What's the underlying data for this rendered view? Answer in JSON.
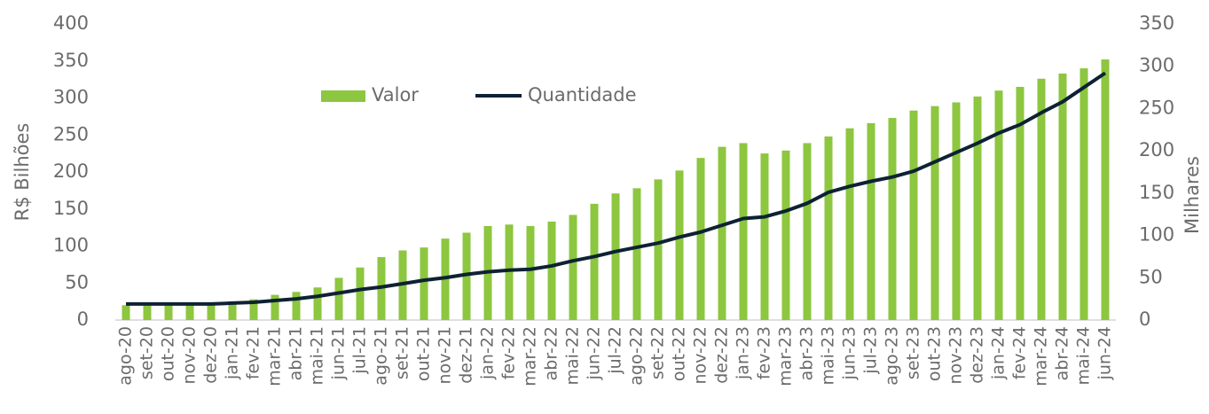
{
  "chart_data": {
    "type": "bar_line",
    "y_label": "R$ Bilhões",
    "y2_label": "Milhares",
    "categories": [
      "ago-20",
      "set-20",
      "out-20",
      "nov-20",
      "dez-20",
      "jan-21",
      "fev-21",
      "mar-21",
      "abr-21",
      "mai-21",
      "jun-21",
      "jul-21",
      "ago-21",
      "set-21",
      "out-21",
      "nov-21",
      "dez-21",
      "jan-22",
      "fev-22",
      "mar-22",
      "abr-22",
      "mai-22",
      "jun-22",
      "jul-22",
      "ago-22",
      "set-22",
      "out-22",
      "nov-22",
      "dez-22",
      "jan-23",
      "fev-23",
      "mar-23",
      "abr-23",
      "mai-23",
      "jun-23",
      "jul-23",
      "ago-23",
      "set-23",
      "out-23",
      "nov-23",
      "dez-23",
      "jan-24",
      "fev-24",
      "mar-24",
      "abr-24",
      "mai-24",
      "jun-24"
    ],
    "series": [
      {
        "name": "Valor",
        "type": "bar",
        "color": "#8dc63f",
        "values": [
          20,
          20,
          20,
          20,
          20,
          22,
          28,
          34,
          38,
          44,
          57,
          71,
          85,
          94,
          98,
          110,
          118,
          127,
          129,
          127,
          133,
          142,
          157,
          171,
          178,
          190,
          202,
          219,
          234,
          239,
          225,
          229,
          239,
          248,
          259,
          266,
          273,
          283,
          289,
          294,
          302,
          310,
          315,
          326,
          333,
          340,
          352
        ]
      },
      {
        "name": "Quantidade",
        "type": "line",
        "axis": "y2",
        "color": "#0d2233",
        "values": [
          19,
          19,
          19,
          19,
          19,
          20,
          21,
          23,
          25,
          28,
          32,
          36,
          39,
          43,
          47,
          50,
          54,
          57,
          59,
          60,
          64,
          70,
          75,
          81,
          86,
          91,
          98,
          104,
          112,
          120,
          122,
          129,
          138,
          151,
          158,
          164,
          169,
          176,
          187,
          198,
          209,
          221,
          231,
          245,
          258,
          275,
          292
        ]
      }
    ],
    "ylim": [
      0,
      400
    ],
    "yticks": [
      0,
      50,
      100,
      150,
      200,
      250,
      300,
      350,
      400
    ],
    "y2lim": [
      0,
      350
    ],
    "y2ticks": [
      0,
      50,
      100,
      150,
      200,
      250,
      300,
      350
    ],
    "legend": "top"
  }
}
